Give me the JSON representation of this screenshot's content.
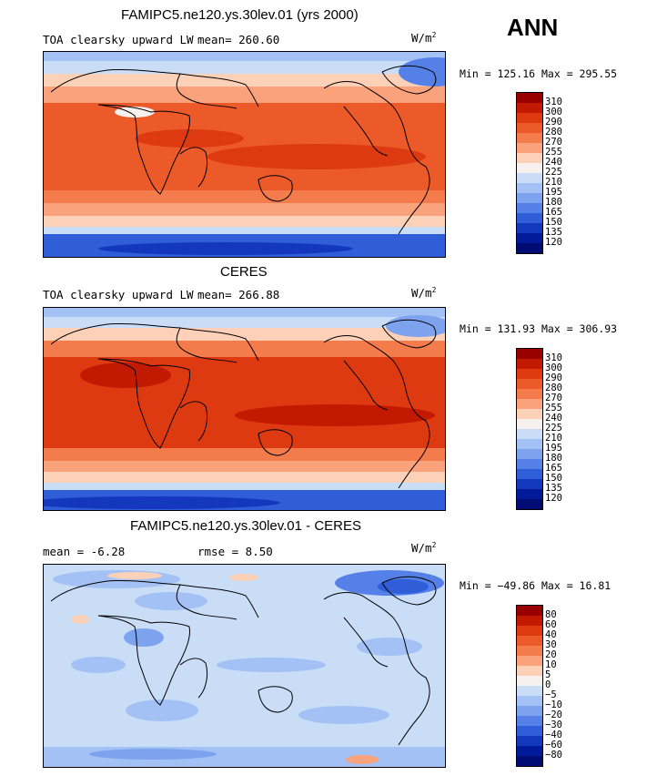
{
  "season": "ANN",
  "units_base": "W/m",
  "units_exp": "2",
  "panels": [
    {
      "title": "FAMIPC5.ne120.ys.30lev.01 (yrs 2000)",
      "variable": "TOA clearsky upward LW",
      "mean_text": "mean= 260.60",
      "minmax": "Min = 125.16 Max = 295.55",
      "palette": "abs"
    },
    {
      "title": "CERES",
      "variable": "TOA clearsky upward LW",
      "mean_text": "mean= 266.88",
      "minmax": "Min = 131.93 Max = 306.93",
      "palette": "abs"
    },
    {
      "title": "FAMIPC5.ne120.ys.30lev.01 - CERES",
      "mean_text": "mean =  -6.28",
      "rmse_text": "rmse =   8.50",
      "minmax": "Min = −49.86 Max =  16.81",
      "palette": "diff"
    }
  ],
  "colorbar_abs": {
    "labels": [
      "310",
      "300",
      "290",
      "280",
      "270",
      "255",
      "240",
      "225",
      "210",
      "195",
      "180",
      "165",
      "150",
      "135",
      "120"
    ],
    "colors": [
      "#990000",
      "#c21a00",
      "#de3a12",
      "#ec5a2a",
      "#f47b4c",
      "#f9a27c",
      "#fdd0b8",
      "#f6f1ee",
      "#c9ddf7",
      "#a3c1f4",
      "#7da3ef",
      "#5580e8",
      "#2f5ed8",
      "#1438bd",
      "#001a99",
      "#000c73"
    ]
  },
  "colorbar_diff": {
    "labels": [
      "80",
      "60",
      "40",
      "30",
      "20",
      "10",
      "5",
      "0",
      "−5",
      "−10",
      "−20",
      "−30",
      "−40",
      "−60",
      "−80"
    ],
    "colors": [
      "#990000",
      "#c21a00",
      "#de3a12",
      "#ec5a2a",
      "#f47b4c",
      "#f9a27c",
      "#fdd0b8",
      "#f6f1ee",
      "#c9ddf7",
      "#a3c1f4",
      "#7da3ef",
      "#5580e8",
      "#2f5ed8",
      "#1438bd",
      "#001a99",
      "#000c73"
    ]
  },
  "chart_data": [
    {
      "type": "heatmap",
      "title": "FAMIPC5.ne120.ys.30lev.01 (yrs 2000)",
      "variable": "TOA clearsky upward LW",
      "units": "W/m2",
      "mean": 260.6,
      "min": 125.16,
      "max": 295.55,
      "contour_levels": [
        120,
        135,
        150,
        165,
        180,
        195,
        210,
        225,
        240,
        255,
        270,
        280,
        290,
        300,
        310
      ]
    },
    {
      "type": "heatmap",
      "title": "CERES",
      "variable": "TOA clearsky upward LW",
      "units": "W/m2",
      "mean": 266.88,
      "min": 131.93,
      "max": 306.93,
      "contour_levels": [
        120,
        135,
        150,
        165,
        180,
        195,
        210,
        225,
        240,
        255,
        270,
        280,
        290,
        300,
        310
      ]
    },
    {
      "type": "heatmap",
      "title": "FAMIPC5.ne120.ys.30lev.01 - CERES",
      "units": "W/m2",
      "mean": -6.28,
      "rmse": 8.5,
      "min": -49.86,
      "max": 16.81,
      "contour_levels": [
        -80,
        -60,
        -40,
        -30,
        -20,
        -10,
        -5,
        0,
        5,
        10,
        20,
        30,
        40,
        60,
        80
      ]
    }
  ]
}
